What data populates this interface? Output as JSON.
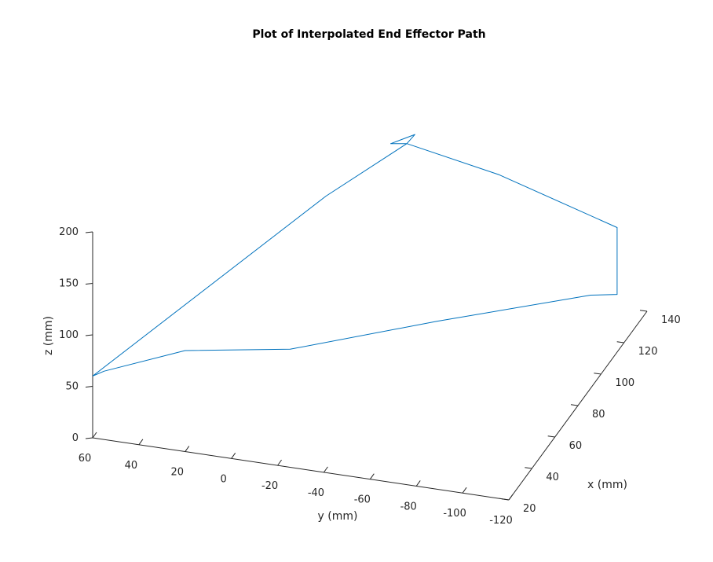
{
  "chart_data": {
    "type": "line3d",
    "title": "Plot of Interpolated End Effector Path",
    "xlabel": "x (mm)",
    "ylabel": "y (mm)",
    "zlabel": "z (mm)",
    "xlim": [
      20,
      140
    ],
    "ylim": [
      -120,
      60
    ],
    "zlim": [
      0,
      200
    ],
    "x_ticks": [
      "20",
      "40",
      "60",
      "80",
      "100",
      "120",
      "140"
    ],
    "y_ticks": [
      "60",
      "40",
      "20",
      "0",
      "-20",
      "-40",
      "-60",
      "-80",
      "-100",
      "-120"
    ],
    "z_ticks": [
      "0",
      "50",
      "100",
      "150",
      "200"
    ],
    "grid": false,
    "series": [
      {
        "color": "#0072bd",
        "points": [
          {
            "x": 20,
            "y": 60,
            "z": 60
          },
          {
            "x": 22,
            "y": 56,
            "z": 63
          },
          {
            "x": 36,
            "y": 28,
            "z": 71
          },
          {
            "x": 57,
            "y": -7,
            "z": 52
          },
          {
            "x": 82,
            "y": -58,
            "z": 58
          },
          {
            "x": 109,
            "y": -111,
            "z": 60
          },
          {
            "x": 114,
            "y": -120,
            "z": 56
          },
          {
            "x": 114,
            "y": -120,
            "z": 103
          },
          {
            "x": 114,
            "y": -120,
            "z": 121
          },
          {
            "x": 94,
            "y": -79,
            "z": 189
          },
          {
            "x": 78,
            "y": -47,
            "z": 233
          },
          {
            "x": 81,
            "y": -49,
            "z": 238
          },
          {
            "x": 76,
            "y": -41,
            "z": 234
          },
          {
            "x": 78,
            "y": -47,
            "z": 233
          },
          {
            "x": 64,
            "y": -19,
            "z": 194
          },
          {
            "x": 20,
            "y": 60,
            "z": 60
          }
        ]
      }
    ]
  }
}
